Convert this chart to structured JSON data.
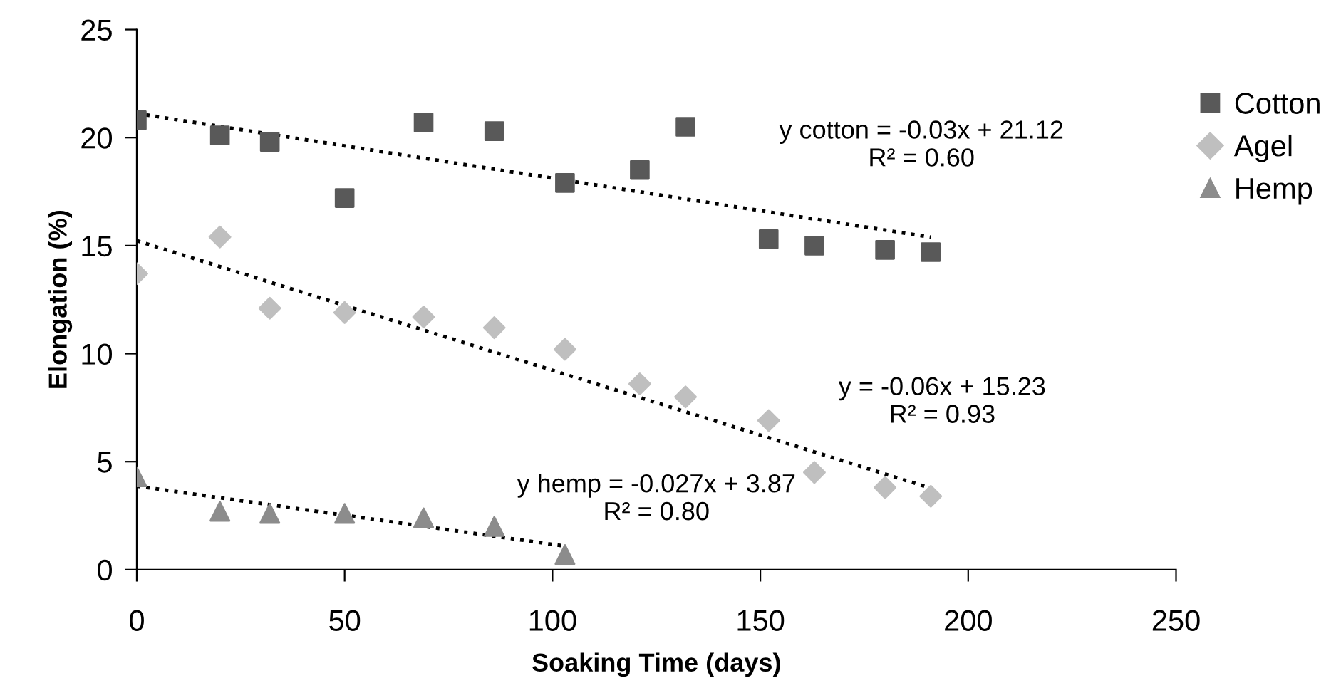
{
  "chart_data": {
    "type": "scatter",
    "xlabel": "Soaking Time (days)",
    "ylabel": "Elongation (%)",
    "xlim": [
      0,
      250
    ],
    "xticks": [
      0,
      50,
      100,
      150,
      200,
      250
    ],
    "ylim": [
      0,
      25
    ],
    "yticks": [
      0,
      5,
      10,
      15,
      20,
      25
    ],
    "grid": false,
    "legend": "right",
    "series": [
      {
        "name": "Cotton",
        "color": "#595959",
        "marker": "square",
        "x": [
          0,
          20,
          32,
          50,
          69,
          86,
          103,
          121,
          132,
          152,
          163,
          180,
          191
        ],
        "values": [
          20.8,
          20.1,
          19.8,
          17.2,
          20.7,
          20.3,
          17.9,
          18.5,
          20.5,
          15.3,
          15.0,
          14.8,
          14.7
        ]
      },
      {
        "name": "Agel",
        "color": "#bfbfbf",
        "marker": "diamond",
        "x": [
          0,
          20,
          32,
          50,
          69,
          86,
          103,
          121,
          132,
          152,
          163,
          180,
          191
        ],
        "values": [
          13.7,
          15.4,
          12.1,
          11.9,
          11.7,
          11.2,
          10.2,
          8.6,
          8.0,
          6.9,
          4.5,
          3.8,
          3.4
        ]
      },
      {
        "name": "Hemp",
        "color": "#8c8c8c",
        "marker": "triangle",
        "x": [
          0,
          20,
          32,
          50,
          69,
          86,
          103
        ],
        "values": [
          4.3,
          2.7,
          2.6,
          2.6,
          2.4,
          2.0,
          0.7
        ]
      },
      {
        "type": "line",
        "color": "#000000",
        "line_style": "dotted",
        "marker": "none",
        "x": [
          0,
          191
        ],
        "values": [
          21.12,
          15.39
        ]
      },
      {
        "type": "line",
        "color": "#000000",
        "line_style": "dotted",
        "marker": "none",
        "x": [
          0,
          191
        ],
        "values": [
          15.23,
          3.77
        ]
      },
      {
        "type": "line",
        "color": "#000000",
        "line_style": "dotted",
        "marker": "none",
        "x": [
          0,
          103
        ],
        "values": [
          3.87,
          1.09
        ]
      }
    ],
    "annotations": [
      "y cotton = -0.03x + 21.12\nR² = 0.60",
      "y = -0.06x + 15.23\nR² = 0.93",
      "y hemp = -0.027x + 3.87\nR² = 0.80"
    ]
  }
}
